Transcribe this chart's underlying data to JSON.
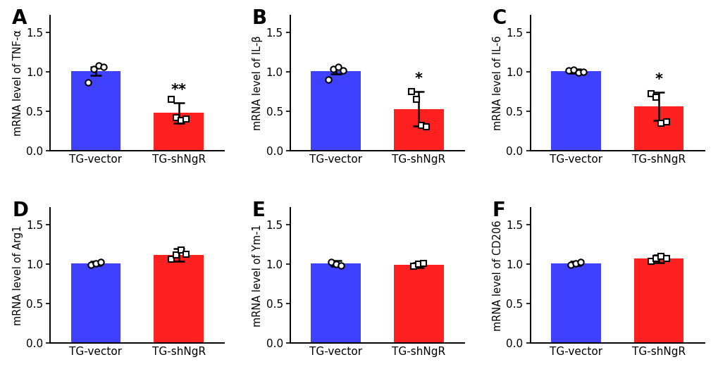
{
  "subplots": [
    {
      "label": "A",
      "ylabel": "mRNA level of TNF-α",
      "bar_values": [
        1.01,
        0.48
      ],
      "bar_errors": [
        0.05,
        0.13
      ],
      "bar_colors": [
        "#4040FF",
        "#FF2020"
      ],
      "significance": "**",
      "blue_dots": [
        0.87,
        1.04,
        1.08,
        1.06
      ],
      "red_dots": [
        0.65,
        0.42,
        0.38,
        0.4
      ],
      "blue_marker": "o",
      "red_marker": "s"
    },
    {
      "label": "B",
      "ylabel": "mRNA level of IL-β",
      "bar_values": [
        1.01,
        0.53
      ],
      "bar_errors": [
        0.04,
        0.22
      ],
      "bar_colors": [
        "#4040FF",
        "#FF2020"
      ],
      "significance": "*",
      "blue_dots": [
        0.9,
        1.04,
        1.06,
        1.02
      ],
      "red_dots": [
        0.75,
        0.65,
        0.32,
        0.3
      ],
      "blue_marker": "o",
      "red_marker": "s"
    },
    {
      "label": "C",
      "ylabel": "mRNA level of IL-6",
      "bar_values": [
        1.01,
        0.56
      ],
      "bar_errors": [
        0.03,
        0.18
      ],
      "bar_colors": [
        "#4040FF",
        "#FF2020"
      ],
      "significance": "*",
      "blue_dots": [
        1.02,
        1.03,
        0.99,
        1.0
      ],
      "red_dots": [
        0.72,
        0.68,
        0.35,
        0.37
      ],
      "blue_marker": "o",
      "red_marker": "s"
    },
    {
      "label": "D",
      "ylabel": "mRNA level of Arg1",
      "bar_values": [
        1.01,
        1.12
      ],
      "bar_errors": [
        0.03,
        0.08
      ],
      "bar_colors": [
        "#4040FF",
        "#FF2020"
      ],
      "significance": "",
      "blue_dots": [
        0.99,
        1.01,
        1.03
      ],
      "red_dots": [
        1.06,
        1.12,
        1.18,
        1.13
      ],
      "blue_marker": "o",
      "red_marker": "s"
    },
    {
      "label": "E",
      "ylabel": "mRNA level of Ym-1",
      "bar_values": [
        1.01,
        0.99
      ],
      "bar_errors": [
        0.04,
        0.03
      ],
      "bar_colors": [
        "#4040FF",
        "#FF2020"
      ],
      "significance": "",
      "blue_dots": [
        1.03,
        1.0,
        0.98
      ],
      "red_dots": [
        0.97,
        1.0,
        1.01
      ],
      "blue_marker": "o",
      "red_marker": "s"
    },
    {
      "label": "F",
      "ylabel": "mRNA level of CD206",
      "bar_values": [
        1.01,
        1.07
      ],
      "bar_errors": [
        0.03,
        0.05
      ],
      "bar_colors": [
        "#4040FF",
        "#FF2020"
      ],
      "significance": "",
      "blue_dots": [
        0.99,
        1.01,
        1.03
      ],
      "red_dots": [
        1.04,
        1.07,
        1.1,
        1.07
      ],
      "blue_marker": "o",
      "red_marker": "s"
    }
  ],
  "x_labels": [
    "TG-vector",
    "TG-shNgR"
  ],
  "ylim": [
    0,
    1.72
  ],
  "yticks": [
    0.0,
    0.5,
    1.0,
    1.5
  ],
  "bar_width": 0.6,
  "background_color": "#ffffff",
  "tick_fontsize": 11,
  "ylabel_fontsize": 10.5,
  "panel_label_fontsize": 20,
  "sig_fontsize": 15
}
